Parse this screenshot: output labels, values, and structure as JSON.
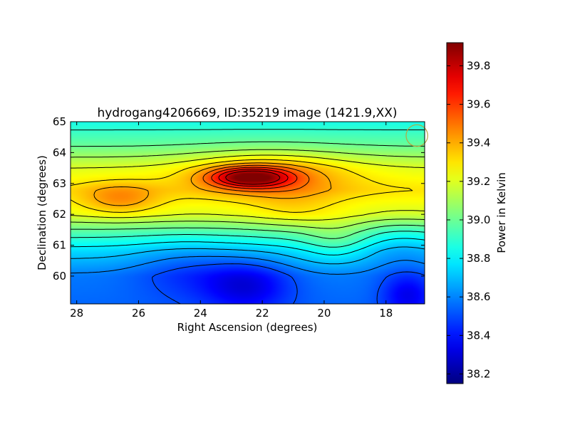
{
  "chart_data": {
    "type": "heatmap",
    "title": "hydrogang4206669, ID:35219 image (1421.9,XX)",
    "xlabel": "Right Ascension (degrees)",
    "ylabel": "Declination (degrees)",
    "xlim": [
      28.2,
      16.75
    ],
    "ylim": [
      59.1,
      65.0
    ],
    "x_ticks": [
      28,
      26,
      24,
      22,
      20,
      18
    ],
    "y_ticks": [
      60,
      61,
      62,
      63,
      64,
      65
    ],
    "x_axis_reversed": true,
    "colormap": "jet",
    "grid": false,
    "contours": true,
    "colorbar": {
      "label": "Power in Kelvin",
      "vmin": 38.15,
      "vmax": 39.92,
      "ticks": [
        38.2,
        38.4,
        38.6,
        38.8,
        39.0,
        39.2,
        39.4,
        39.6,
        39.8
      ]
    },
    "field": {
      "background_gradient": [
        {
          "dec": 59.1,
          "value": 38.55
        },
        {
          "dec": 60.0,
          "value": 38.58
        },
        {
          "dec": 60.8,
          "value": 38.75
        },
        {
          "dec": 61.4,
          "value": 38.95
        },
        {
          "dec": 62.0,
          "value": 39.2
        },
        {
          "dec": 62.8,
          "value": 39.3
        },
        {
          "dec": 63.5,
          "value": 39.2
        },
        {
          "dec": 64.2,
          "value": 39.0
        },
        {
          "dec": 65.0,
          "value": 38.85
        }
      ],
      "features": [
        {
          "ra": 22.4,
          "dec": 63.2,
          "amp": 0.55,
          "sra": 0.9,
          "sdec": 0.22
        },
        {
          "ra": 21.8,
          "dec": 63.3,
          "amp": 0.25,
          "sra": 1.8,
          "sdec": 0.5
        },
        {
          "ra": 26.6,
          "dec": 62.5,
          "amp": 0.2,
          "sra": 0.9,
          "sdec": 0.35
        },
        {
          "ra": 21.0,
          "dec": 62.2,
          "amp": 0.08,
          "sra": 1.0,
          "sdec": 0.5
        },
        {
          "ra": 22.5,
          "dec": 59.7,
          "amp": -0.25,
          "sra": 1.0,
          "sdec": 0.6
        },
        {
          "ra": 24.5,
          "dec": 60.2,
          "amp": -0.12,
          "sra": 1.2,
          "sdec": 0.7
        },
        {
          "ra": 17.3,
          "dec": 59.4,
          "amp": -0.22,
          "sra": 0.6,
          "sdec": 0.5
        },
        {
          "ra": 19.6,
          "dec": 61.1,
          "amp": 0.12,
          "sra": 0.8,
          "sdec": 0.5
        },
        {
          "ra": 17.5,
          "dec": 61.0,
          "amp": -0.1,
          "sra": 1.0,
          "sdec": 0.6
        }
      ]
    },
    "beam_marker": {
      "ra": 17.0,
      "dec": 64.55,
      "radius_deg": 0.35,
      "color": "#b5a642"
    }
  }
}
